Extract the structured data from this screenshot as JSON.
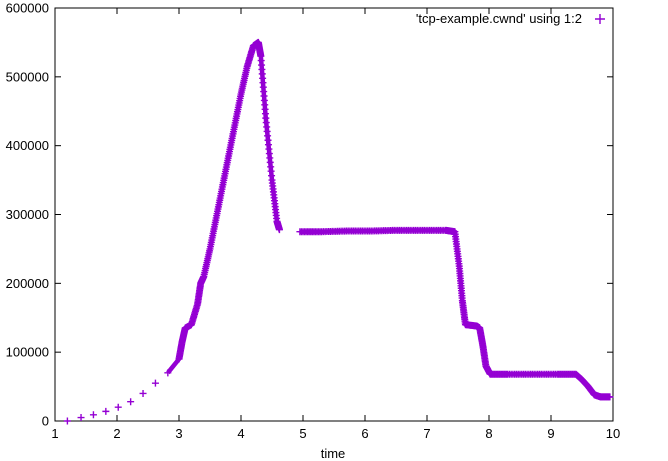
{
  "chart_data": {
    "type": "scatter",
    "title": "",
    "xlabel": "time",
    "ylabel": "",
    "xlim": [
      1,
      10
    ],
    "ylim": [
      0,
      600000
    ],
    "x_ticks": [
      "1",
      "2",
      "3",
      "4",
      "5",
      "6",
      "7",
      "8",
      "9",
      "10"
    ],
    "y_ticks": [
      "0",
      "100000",
      "200000",
      "300000",
      "400000",
      "500000",
      "600000"
    ],
    "grid": false,
    "legend_position": "top-right",
    "series": [
      {
        "name": "'tcp-example.cwnd' using 1:2",
        "color": "#9400d3",
        "marker": "plus",
        "x": [
          1.2,
          1.42,
          1.62,
          1.82,
          2.02,
          2.22,
          2.42,
          2.62,
          2.82,
          3.0,
          3.05,
          3.1,
          3.2,
          3.3,
          3.35,
          3.4,
          3.5,
          3.6,
          3.7,
          3.8,
          3.9,
          4.0,
          4.1,
          4.2,
          4.28,
          4.32,
          4.4,
          4.5,
          4.58,
          4.62,
          4.95,
          5.3,
          5.7,
          6.1,
          6.5,
          6.9,
          7.3,
          7.45,
          7.52,
          7.57,
          7.62,
          7.8,
          7.85,
          7.9,
          7.95,
          8.02,
          8.3,
          8.7,
          9.1,
          9.4,
          9.5,
          9.6,
          9.7,
          9.8,
          9.95
        ],
        "y": [
          0,
          5000,
          9000,
          14000,
          20000,
          28000,
          40000,
          55000,
          70000,
          90000,
          115000,
          135000,
          140000,
          170000,
          200000,
          210000,
          250000,
          295000,
          340000,
          385000,
          430000,
          475000,
          515000,
          545000,
          550000,
          530000,
          440000,
          350000,
          290000,
          278000,
          275000,
          275000,
          276000,
          276000,
          277000,
          277000,
          277000,
          275000,
          225000,
          175000,
          140000,
          138000,
          135000,
          110000,
          80000,
          68000,
          68000,
          68000,
          68000,
          68000,
          60000,
          50000,
          38000,
          35000,
          35000
        ]
      }
    ]
  }
}
